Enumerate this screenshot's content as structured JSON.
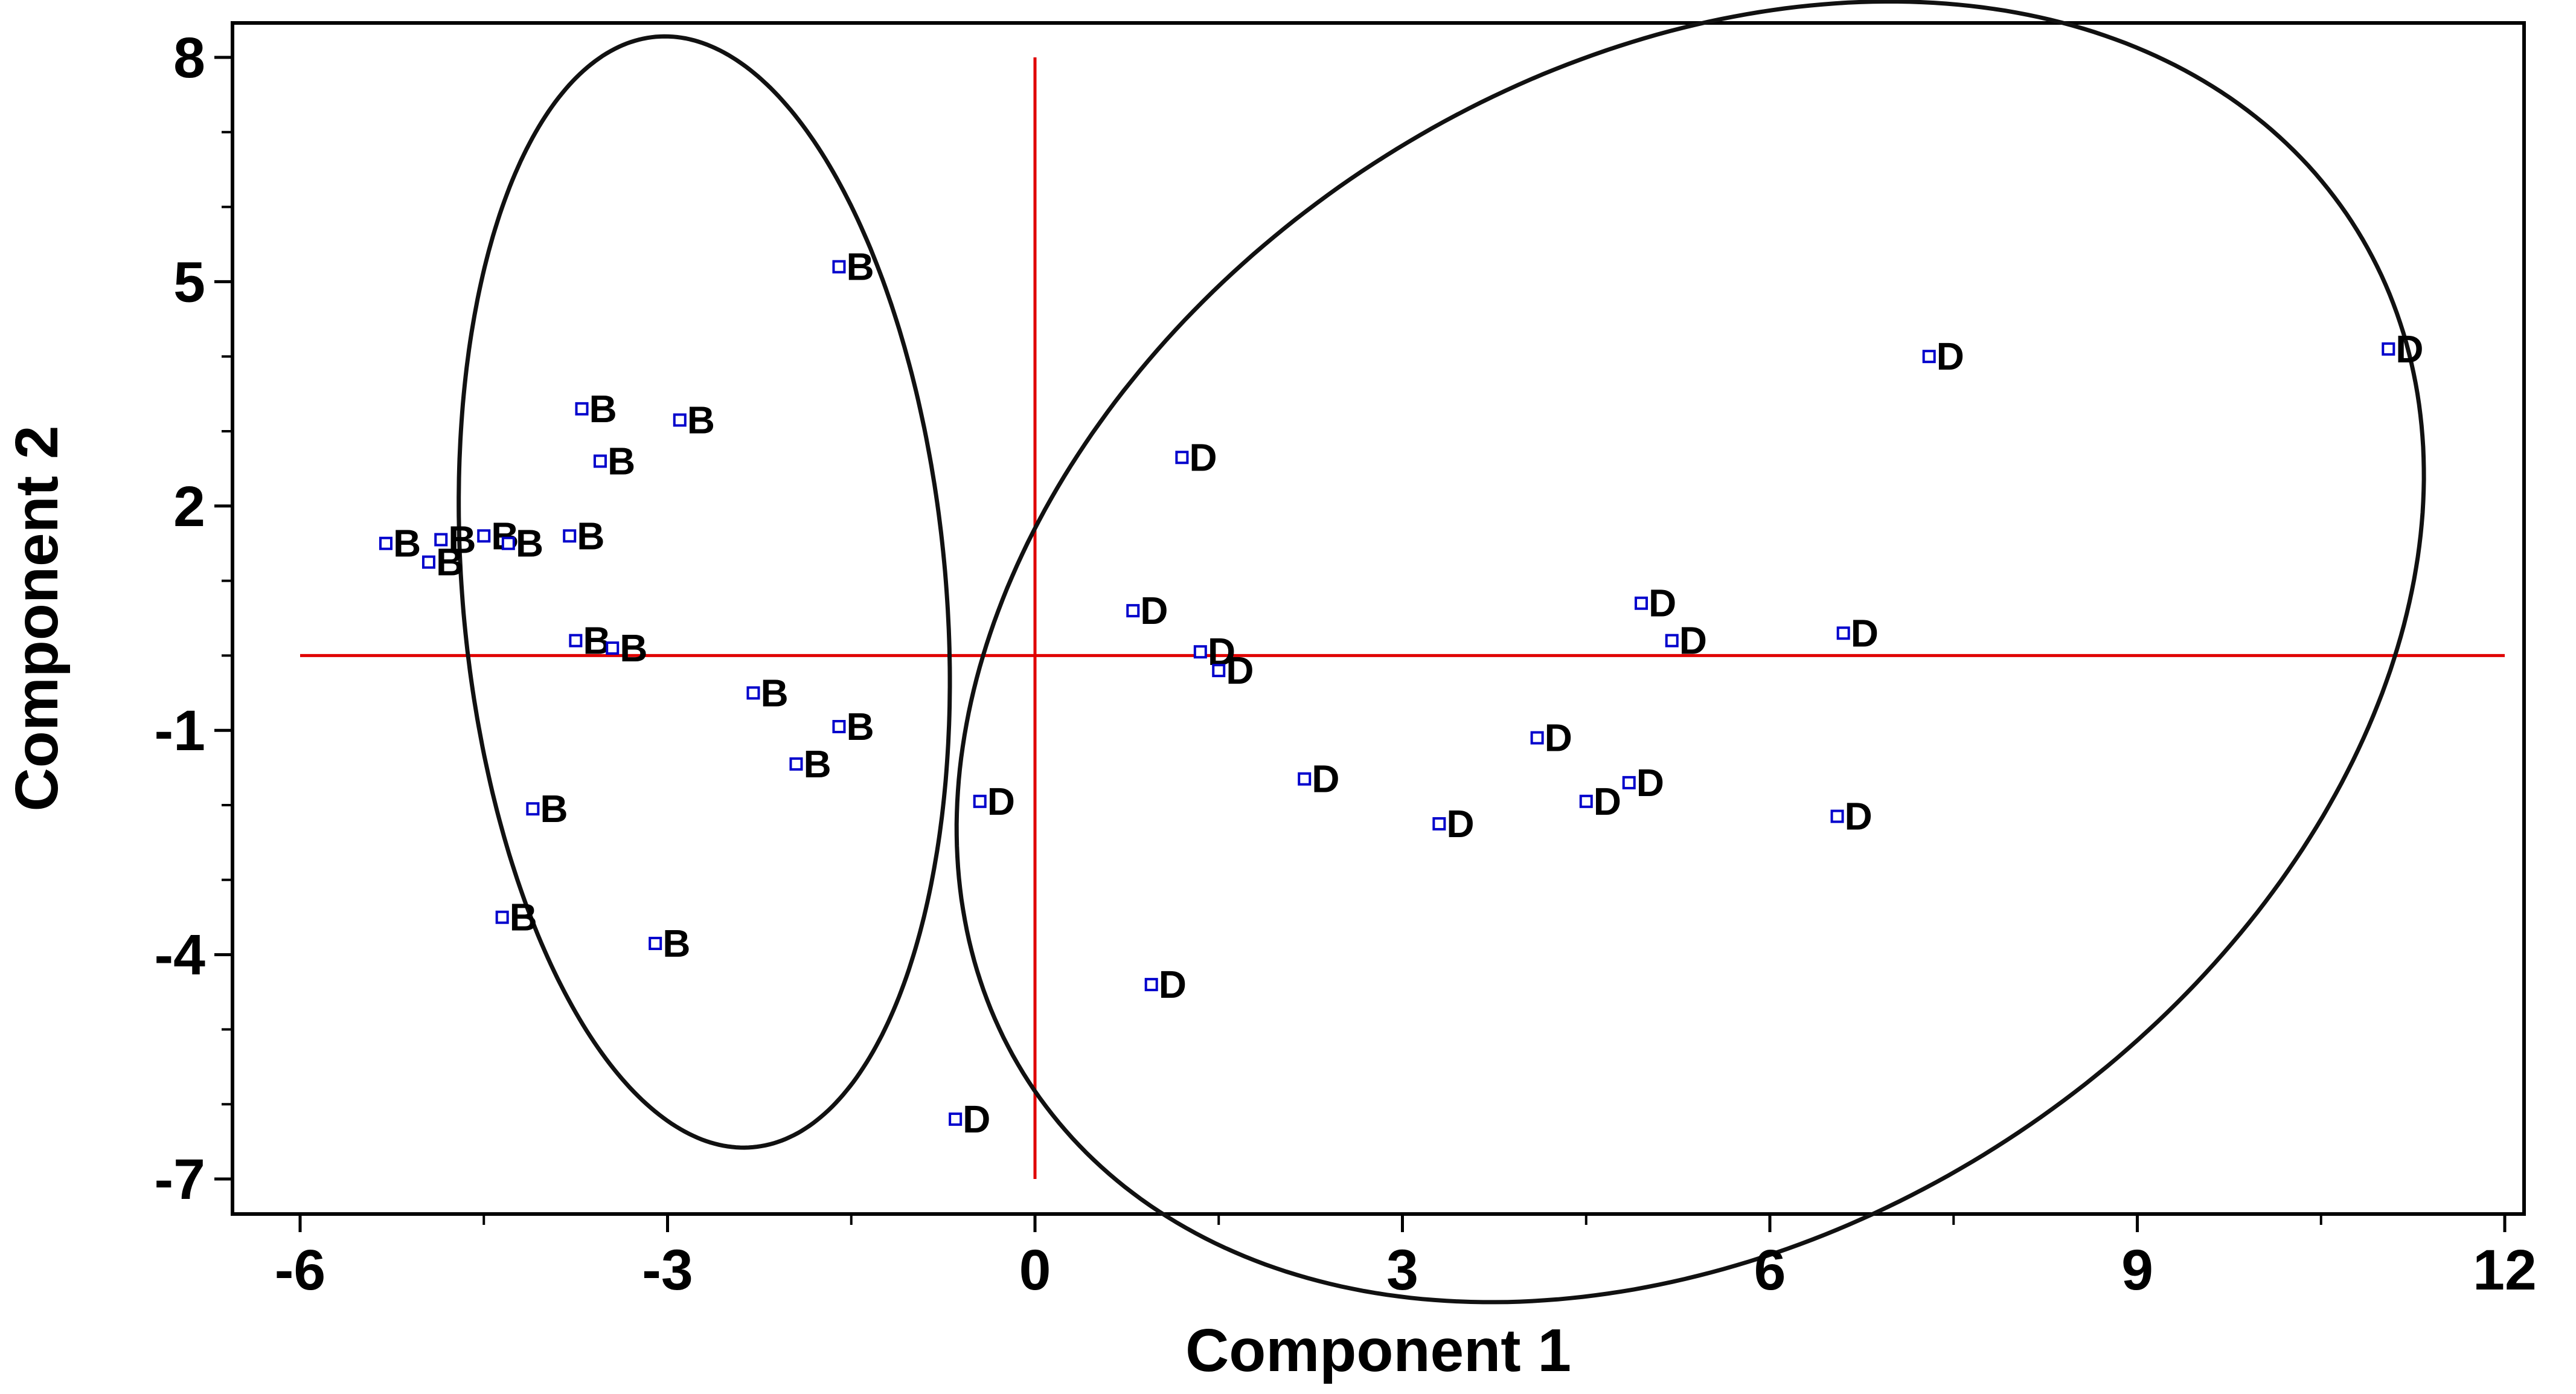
{
  "chart_data": {
    "type": "scatter",
    "xlabel": "Component 1",
    "ylabel": "Component 2",
    "xlim": [
      -6,
      12
    ],
    "ylim": [
      -7,
      8
    ],
    "x_ticks": [
      -6,
      -3,
      0,
      3,
      6,
      9,
      12
    ],
    "y_ticks": [
      8,
      5,
      2,
      -1,
      -4,
      -7
    ],
    "grid": false,
    "reference_lines": {
      "x": 0,
      "y": 0,
      "color": "#e00000"
    },
    "marker_color": "#0000cc",
    "series": [
      {
        "name": "B",
        "points": [
          {
            "x": -1.6,
            "y": 5.2
          },
          {
            "x": -3.7,
            "y": 3.3
          },
          {
            "x": -2.9,
            "y": 3.15
          },
          {
            "x": -3.55,
            "y": 2.6
          },
          {
            "x": -5.3,
            "y": 1.5
          },
          {
            "x": -4.85,
            "y": 1.55
          },
          {
            "x": -4.5,
            "y": 1.6
          },
          {
            "x": -4.3,
            "y": 1.5
          },
          {
            "x": -3.8,
            "y": 1.6
          },
          {
            "x": -4.95,
            "y": 1.25
          },
          {
            "x": -3.75,
            "y": 0.2
          },
          {
            "x": -3.45,
            "y": 0.1
          },
          {
            "x": -2.3,
            "y": -0.5
          },
          {
            "x": -1.6,
            "y": -0.95
          },
          {
            "x": -1.95,
            "y": -1.45
          },
          {
            "x": -4.1,
            "y": -2.05
          },
          {
            "x": -4.35,
            "y": -3.5
          },
          {
            "x": -3.1,
            "y": -3.85
          }
        ]
      },
      {
        "name": "D",
        "points": [
          {
            "x": 7.3,
            "y": 4.0
          },
          {
            "x": 11.05,
            "y": 4.1
          },
          {
            "x": 1.2,
            "y": 2.65
          },
          {
            "x": 0.8,
            "y": 0.6
          },
          {
            "x": 4.95,
            "y": 0.7
          },
          {
            "x": 5.2,
            "y": 0.2
          },
          {
            "x": 6.6,
            "y": 0.3
          },
          {
            "x": 1.35,
            "y": 0.05
          },
          {
            "x": 1.5,
            "y": -0.2
          },
          {
            "x": 4.1,
            "y": -1.1
          },
          {
            "x": 2.2,
            "y": -1.65
          },
          {
            "x": 4.85,
            "y": -1.7
          },
          {
            "x": 4.5,
            "y": -1.95
          },
          {
            "x": -0.45,
            "y": -1.95
          },
          {
            "x": 3.3,
            "y": -2.25
          },
          {
            "x": 6.55,
            "y": -2.15
          },
          {
            "x": 0.95,
            "y": -4.4
          },
          {
            "x": -0.65,
            "y": -6.2
          }
        ]
      }
    ],
    "ellipses": [
      {
        "group": "B",
        "cx": -2.7,
        "cy": 0.85,
        "rx": 5.65,
        "ry": 2.45,
        "angle_deg": 95
      },
      {
        "group": "D",
        "cx": 5.35,
        "cy": 0.05,
        "rx": 8.0,
        "ry": 5.9,
        "angle_deg": 33
      }
    ]
  }
}
